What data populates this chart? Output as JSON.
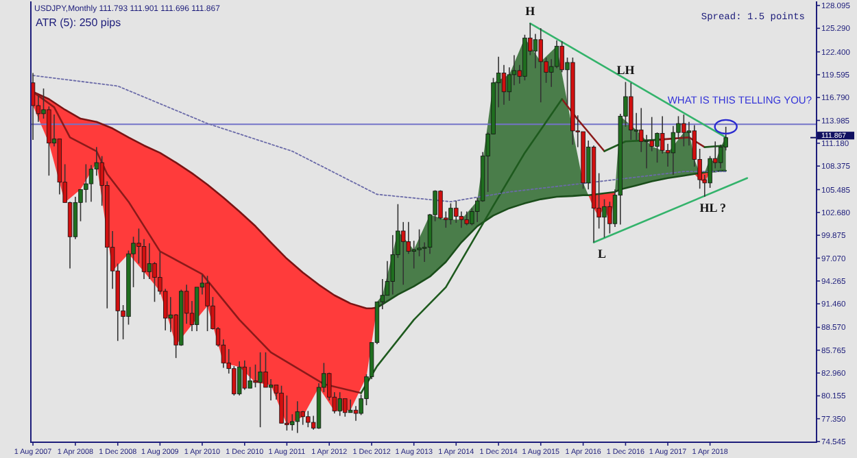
{
  "chart_data": {
    "type": "candlestick",
    "title": "USDJPY,Monthly  111.793 111.901 111.696 111.867",
    "subtitle": "ATR (5): 250 pips",
    "xlim": [
      "2007-07-16",
      "2019-12"
    ],
    "ylim": [
      74.545,
      128.6
    ],
    "xticks": [
      {
        "value": "2007-08",
        "label": "1 Aug 2007"
      },
      {
        "value": "2008-04",
        "label": "1 Apr 2008"
      },
      {
        "value": "2008-12",
        "label": "1 Dec 2008"
      },
      {
        "value": "2009-08",
        "label": "1 Aug 2009"
      },
      {
        "value": "2010-04",
        "label": "1 Apr 2010"
      },
      {
        "value": "2010-12",
        "label": "1 Dec 2010"
      },
      {
        "value": "2011-08",
        "label": "1 Aug 2011"
      },
      {
        "value": "2012-04",
        "label": "1 Apr 2012"
      },
      {
        "value": "2012-12",
        "label": "1 Dec 2012"
      },
      {
        "value": "2013-08",
        "label": "1 Aug 2013"
      },
      {
        "value": "2014-04",
        "label": "1 Apr 2014"
      },
      {
        "value": "2014-12",
        "label": "1 Dec 2014"
      },
      {
        "value": "2015-08",
        "label": "1 Aug 2015"
      },
      {
        "value": "2016-04",
        "label": "1 Apr 2016"
      },
      {
        "value": "2016-12",
        "label": "1 Dec 2016"
      },
      {
        "value": "2017-08",
        "label": "1 Aug 2017"
      },
      {
        "value": "2018-04",
        "label": "1 Apr 2018"
      }
    ],
    "yticks": [
      {
        "value": 128.095,
        "label": "128.095"
      },
      {
        "value": 125.29,
        "label": "125.290"
      },
      {
        "value": 122.4,
        "label": "122.400"
      },
      {
        "value": 119.595,
        "label": "119.595"
      },
      {
        "value": 116.79,
        "label": "116.790"
      },
      {
        "value": 113.985,
        "label": "113.985"
      },
      {
        "value": 111.18,
        "label": "111.180"
      },
      {
        "value": 108.375,
        "label": "108.375"
      },
      {
        "value": 105.485,
        "label": "105.485"
      },
      {
        "value": 102.68,
        "label": "102.680"
      },
      {
        "value": 99.875,
        "label": "99.875"
      },
      {
        "value": 97.07,
        "label": "97.070"
      },
      {
        "value": 94.265,
        "label": "94.265"
      },
      {
        "value": 91.46,
        "label": "91.460"
      },
      {
        "value": 88.57,
        "label": "88.570"
      },
      {
        "value": 85.765,
        "label": "85.765"
      },
      {
        "value": 82.96,
        "label": "82.960"
      },
      {
        "value": 80.155,
        "label": "80.155"
      },
      {
        "value": 77.35,
        "label": "77.350"
      },
      {
        "value": 74.545,
        "label": "74.545"
      }
    ],
    "x": [
      "2007-08",
      "2007-09",
      "2007-10",
      "2007-11",
      "2007-12",
      "2008-01",
      "2008-02",
      "2008-03",
      "2008-04",
      "2008-05",
      "2008-06",
      "2008-07",
      "2008-08",
      "2008-09",
      "2008-10",
      "2008-11",
      "2008-12",
      "2009-01",
      "2009-02",
      "2009-03",
      "2009-04",
      "2009-05",
      "2009-06",
      "2009-07",
      "2009-08",
      "2009-09",
      "2009-10",
      "2009-11",
      "2009-12",
      "2010-01",
      "2010-02",
      "2010-03",
      "2010-04",
      "2010-05",
      "2010-06",
      "2010-07",
      "2010-08",
      "2010-09",
      "2010-10",
      "2010-11",
      "2010-12",
      "2011-01",
      "2011-02",
      "2011-03",
      "2011-04",
      "2011-05",
      "2011-06",
      "2011-07",
      "2011-08",
      "2011-09",
      "2011-10",
      "2011-11",
      "2011-12",
      "2012-01",
      "2012-02",
      "2012-03",
      "2012-04",
      "2012-05",
      "2012-06",
      "2012-07",
      "2012-08",
      "2012-09",
      "2012-10",
      "2012-11",
      "2012-12",
      "2013-01",
      "2013-02",
      "2013-03",
      "2013-04",
      "2013-05",
      "2013-06",
      "2013-07",
      "2013-08",
      "2013-09",
      "2013-10",
      "2013-11",
      "2013-12",
      "2014-01",
      "2014-02",
      "2014-03",
      "2014-04",
      "2014-05",
      "2014-06",
      "2014-07",
      "2014-08",
      "2014-09",
      "2014-10",
      "2014-11",
      "2014-12",
      "2015-01",
      "2015-02",
      "2015-03",
      "2015-04",
      "2015-05",
      "2015-06",
      "2015-07",
      "2015-08",
      "2015-09",
      "2015-10",
      "2015-11",
      "2015-12",
      "2016-01",
      "2016-02",
      "2016-03",
      "2016-04",
      "2016-05",
      "2016-06",
      "2016-07",
      "2016-08",
      "2016-09",
      "2016-10",
      "2016-11",
      "2016-12",
      "2017-01",
      "2017-02",
      "2017-03",
      "2017-04",
      "2017-05",
      "2017-06",
      "2017-07",
      "2017-08",
      "2017-09",
      "2017-10",
      "2017-11",
      "2017-12",
      "2018-01",
      "2018-02",
      "2018-03",
      "2018-04",
      "2018-05",
      "2018-06",
      "2018-07"
    ],
    "ohlc": [
      [
        118.6,
        119.8,
        111.6,
        115.8
      ],
      [
        115.8,
        117.0,
        113.8,
        114.8
      ],
      [
        114.8,
        117.9,
        114.2,
        115.3
      ],
      [
        115.3,
        115.7,
        107.2,
        111.2
      ],
      [
        111.2,
        114.7,
        110.8,
        111.7
      ],
      [
        111.7,
        111.7,
        104.9,
        106.4
      ],
      [
        106.4,
        108.6,
        103.9,
        103.9
      ],
      [
        103.9,
        104.0,
        95.8,
        99.7
      ],
      [
        99.7,
        104.6,
        99.4,
        103.9
      ],
      [
        103.9,
        105.5,
        101.6,
        105.5
      ],
      [
        105.5,
        108.6,
        103.9,
        106.2
      ],
      [
        106.2,
        108.5,
        104.0,
        108.0
      ],
      [
        108.0,
        110.7,
        107.2,
        108.8
      ],
      [
        108.8,
        109.6,
        103.5,
        106.0
      ],
      [
        106.0,
        106.5,
        90.9,
        98.4
      ],
      [
        98.4,
        100.4,
        93.3,
        95.5
      ],
      [
        95.5,
        96.4,
        86.9,
        90.6
      ],
      [
        90.6,
        91.3,
        87.1,
        89.9
      ],
      [
        89.9,
        98.0,
        88.9,
        97.6
      ],
      [
        97.6,
        99.7,
        93.5,
        98.9
      ],
      [
        98.9,
        100.7,
        96.4,
        98.5
      ],
      [
        98.5,
        99.4,
        94.5,
        95.4
      ],
      [
        95.4,
        98.9,
        94.5,
        96.4
      ],
      [
        96.4,
        96.6,
        91.7,
        94.7
      ],
      [
        94.7,
        97.8,
        92.6,
        93.0
      ],
      [
        93.0,
        93.3,
        88.2,
        89.7
      ],
      [
        89.7,
        92.3,
        88.0,
        90.1
      ],
      [
        90.1,
        90.2,
        84.8,
        86.4
      ],
      [
        86.4,
        93.2,
        86.3,
        93.0
      ],
      [
        93.0,
        93.8,
        89.0,
        90.3
      ],
      [
        90.3,
        91.8,
        88.1,
        88.9
      ],
      [
        88.9,
        93.5,
        88.1,
        93.5
      ],
      [
        93.5,
        95.0,
        92.6,
        94.0
      ],
      [
        94.0,
        94.9,
        88.1,
        91.2
      ],
      [
        91.2,
        92.3,
        88.3,
        88.4
      ],
      [
        88.4,
        88.6,
        86.2,
        86.4
      ],
      [
        86.4,
        87.1,
        83.6,
        84.2
      ],
      [
        84.2,
        85.9,
        82.9,
        83.5
      ],
      [
        83.5,
        83.8,
        80.2,
        80.4
      ],
      [
        80.4,
        84.4,
        80.2,
        83.7
      ],
      [
        83.7,
        84.5,
        80.9,
        81.1
      ],
      [
        81.1,
        83.7,
        81.1,
        82.0
      ],
      [
        82.0,
        84.0,
        81.2,
        81.8
      ],
      [
        81.8,
        85.5,
        76.3,
        83.1
      ],
      [
        83.1,
        85.5,
        81.2,
        81.2
      ],
      [
        81.2,
        82.2,
        79.6,
        81.5
      ],
      [
        81.5,
        81.5,
        79.7,
        80.5
      ],
      [
        80.5,
        81.4,
        76.8,
        76.8
      ],
      [
        76.8,
        80.2,
        75.9,
        76.6
      ],
      [
        76.6,
        77.9,
        75.9,
        77.0
      ],
      [
        77.0,
        79.5,
        75.6,
        78.2
      ],
      [
        78.2,
        78.3,
        76.6,
        77.6
      ],
      [
        77.6,
        78.3,
        76.3,
        76.9
      ],
      [
        76.9,
        77.7,
        76.0,
        76.2
      ],
      [
        76.2,
        81.7,
        76.1,
        81.2
      ],
      [
        81.2,
        84.2,
        80.6,
        82.9
      ],
      [
        82.9,
        83.0,
        79.6,
        80.0
      ],
      [
        80.0,
        80.6,
        78.0,
        78.3
      ],
      [
        78.3,
        80.6,
        77.7,
        79.8
      ],
      [
        79.8,
        79.8,
        77.6,
        78.1
      ],
      [
        78.1,
        79.7,
        78.1,
        78.4
      ],
      [
        78.4,
        78.9,
        77.1,
        78.0
      ],
      [
        78.0,
        80.3,
        77.8,
        79.8
      ],
      [
        79.8,
        82.8,
        79.0,
        82.5
      ],
      [
        82.5,
        86.7,
        82.2,
        86.7
      ],
      [
        86.7,
        91.7,
        86.5,
        91.7
      ],
      [
        91.7,
        94.5,
        90.8,
        92.5
      ],
      [
        92.5,
        96.7,
        92.5,
        94.2
      ],
      [
        94.2,
        99.9,
        92.6,
        97.5
      ],
      [
        97.5,
        103.7,
        97.1,
        100.4
      ],
      [
        100.4,
        101.5,
        93.8,
        99.1
      ],
      [
        99.1,
        101.5,
        97.6,
        97.9
      ],
      [
        97.9,
        99.2,
        95.8,
        98.1
      ],
      [
        98.1,
        100.6,
        97.3,
        98.3
      ],
      [
        98.3,
        99.0,
        96.6,
        98.4
      ],
      [
        98.4,
        102.5,
        97.6,
        102.4
      ],
      [
        102.4,
        105.4,
        101.6,
        105.3
      ],
      [
        105.3,
        105.4,
        101.8,
        102.0
      ],
      [
        102.0,
        102.8,
        100.8,
        101.8
      ],
      [
        101.8,
        103.8,
        101.2,
        103.2
      ],
      [
        103.2,
        104.1,
        101.4,
        102.2
      ],
      [
        102.2,
        102.8,
        100.8,
        101.8
      ],
      [
        101.8,
        102.8,
        101.1,
        101.3
      ],
      [
        101.3,
        103.2,
        101.1,
        102.8
      ],
      [
        102.8,
        104.5,
        101.5,
        104.1
      ],
      [
        104.1,
        110.1,
        104.0,
        109.6
      ],
      [
        109.6,
        112.5,
        105.2,
        112.3
      ],
      [
        112.3,
        119.2,
        112.3,
        118.6
      ],
      [
        118.6,
        121.8,
        115.6,
        119.8
      ],
      [
        119.8,
        120.8,
        115.9,
        117.5
      ],
      [
        117.5,
        120.5,
        116.4,
        119.6
      ],
      [
        119.6,
        122.0,
        118.3,
        120.1
      ],
      [
        120.1,
        120.8,
        118.5,
        119.4
      ],
      [
        119.4,
        124.5,
        118.9,
        124.1
      ],
      [
        124.1,
        125.9,
        122.0,
        122.5
      ],
      [
        122.5,
        124.6,
        120.4,
        123.9
      ],
      [
        123.9,
        125.3,
        116.2,
        121.2
      ],
      [
        121.2,
        121.7,
        118.6,
        119.9
      ],
      [
        119.9,
        121.5,
        118.1,
        120.6
      ],
      [
        120.6,
        123.8,
        120.4,
        123.1
      ],
      [
        123.1,
        123.7,
        119.9,
        120.2
      ],
      [
        120.2,
        121.7,
        115.9,
        121.1
      ],
      [
        121.1,
        121.7,
        111.0,
        112.7
      ],
      [
        112.7,
        114.6,
        110.7,
        112.6
      ],
      [
        112.6,
        112.6,
        105.6,
        106.3
      ],
      [
        106.3,
        111.5,
        105.5,
        110.7
      ],
      [
        110.7,
        110.9,
        99.0,
        103.2
      ],
      [
        103.2,
        107.5,
        100.7,
        102.1
      ],
      [
        102.1,
        104.3,
        99.6,
        103.4
      ],
      [
        103.4,
        104.0,
        100.1,
        101.3
      ],
      [
        101.3,
        105.5,
        100.9,
        104.8
      ],
      [
        104.8,
        114.8,
        101.2,
        114.5
      ],
      [
        114.5,
        118.7,
        113.2,
        116.9
      ],
      [
        116.9,
        118.6,
        111.6,
        112.8
      ],
      [
        112.8,
        114.9,
        111.6,
        112.8
      ],
      [
        112.8,
        115.5,
        110.1,
        111.4
      ],
      [
        111.4,
        112.2,
        108.1,
        111.5
      ],
      [
        111.5,
        114.4,
        110.2,
        110.8
      ],
      [
        110.8,
        112.5,
        108.8,
        112.4
      ],
      [
        112.4,
        114.5,
        109.9,
        110.3
      ],
      [
        110.3,
        111.1,
        108.3,
        110.0
      ],
      [
        110.0,
        113.3,
        107.3,
        112.5
      ],
      [
        112.5,
        114.5,
        111.7,
        113.6
      ],
      [
        113.6,
        114.7,
        110.8,
        112.5
      ],
      [
        112.5,
        113.8,
        110.9,
        112.7
      ],
      [
        112.7,
        113.4,
        108.3,
        109.2
      ],
      [
        109.2,
        110.5,
        105.6,
        106.7
      ],
      [
        106.7,
        107.3,
        104.6,
        106.3
      ],
      [
        106.3,
        109.6,
        105.7,
        109.3
      ],
      [
        109.3,
        111.4,
        108.1,
        108.8
      ],
      [
        108.8,
        111.0,
        108.1,
        110.7
      ],
      [
        110.7,
        113.2,
        110.3,
        111.867
      ]
    ],
    "series": [
      {
        "type": "line",
        "color": "#ff3b3b",
        "x": [
          "2007-08",
          "2007-11",
          "2008-02",
          "2008-05",
          "2008-08",
          "2008-11",
          "2009-02",
          "2009-05",
          "2009-08",
          "2009-11",
          "2010-02",
          "2010-05",
          "2010-08",
          "2010-11",
          "2011-02",
          "2011-05",
          "2011-08",
          "2011-11",
          "2012-02",
          "2012-05",
          "2012-08",
          "2012-11",
          "2012-12",
          "2013-01"
        ],
        "values": [
          null,
          null,
          null,
          null,
          null,
          null,
          null,
          null,
          null,
          null,
          null,
          null,
          null,
          null,
          null,
          null,
          null,
          null,
          null,
          null,
          null,
          null,
          null,
          null
        ],
        "upper": [
          117.5,
          116.6,
          115.3,
          114.2,
          113.8,
          113.0,
          111.9,
          110.9,
          110.0,
          108.8,
          107.5,
          106.1,
          104.5,
          102.8,
          101.0,
          99.0,
          97.0,
          95.3,
          93.8,
          92.5,
          91.5,
          90.9,
          90.9,
          91.0
        ],
        "lower": [
          115.8,
          111.2,
          103.9,
          105.5,
          108.8,
          95.5,
          97.6,
          95.4,
          93.0,
          86.4,
          88.9,
          91.2,
          84.2,
          83.7,
          81.8,
          81.5,
          76.6,
          77.6,
          81.2,
          78.3,
          78.4,
          82.5,
          86.7,
          91.0
        ]
      },
      {
        "type": "line",
        "color": "#4a7d4a",
        "x": [
          "2013-01",
          "2013-02",
          "2013-05",
          "2013-08",
          "2013-11",
          "2014-02",
          "2014-05",
          "2014-08",
          "2014-11",
          "2015-02",
          "2015-05",
          "2015-08",
          "2015-11",
          "2016-02",
          "2016-04",
          "2016-05",
          "2016-10",
          "2016-11",
          "2017-02",
          "2017-05",
          "2017-08",
          "2017-11",
          "2017-12",
          "2018-01",
          "2018-02",
          "2018-03",
          "2018-04",
          "2018-05",
          "2018-06",
          "2018-07"
        ],
        "values": [
          null,
          null,
          null,
          null,
          null,
          null,
          null,
          null,
          null,
          null,
          null,
          null,
          null,
          null,
          null,
          null,
          null,
          null,
          null,
          null,
          null,
          null,
          null,
          null,
          null,
          null,
          null,
          null,
          null,
          null
        ],
        "lower": [
          91.0,
          91.4,
          92.6,
          93.6,
          94.8,
          96.6,
          99.0,
          101.0,
          102.3,
          103.2,
          103.8,
          104.3,
          104.6,
          104.7,
          104.8,
          104.8,
          105.2,
          105.5,
          106.0,
          106.5,
          106.9,
          107.2,
          107.3,
          107.4,
          107.5,
          107.6,
          107.7,
          107.7,
          107.8,
          107.8
        ],
        "upper": [
          91.7,
          92.5,
          100.4,
          98.1,
          102.4,
          101.8,
          101.8,
          104.1,
          118.6,
          119.6,
          124.1,
          121.2,
          123.1,
          112.7,
          106.3,
          104.8,
          105.2,
          114.5,
          112.8,
          110.8,
          110.0,
          112.5,
          112.7,
          109.2,
          107.5,
          107.6,
          109.3,
          108.8,
          110.7,
          111.9
        ]
      },
      {
        "type": "line",
        "color": "#7a1414",
        "x": [
          "2007-08",
          "2007-11",
          "2008-02",
          "2008-05",
          "2008-08",
          "2008-11",
          "2009-02",
          "2009-05",
          "2009-08",
          "2009-11",
          "2010-02",
          "2010-05",
          "2010-08",
          "2010-11",
          "2011-02",
          "2011-05",
          "2011-08",
          "2011-11",
          "2012-02",
          "2012-05",
          "2012-08",
          "2012-11",
          "2012-12",
          "2013-01"
        ],
        "values": [
          117.5,
          116.6,
          115.3,
          114.2,
          113.8,
          113.0,
          111.9,
          110.9,
          110.0,
          108.8,
          107.5,
          106.1,
          104.5,
          102.8,
          101.0,
          99.0,
          97.0,
          95.3,
          93.8,
          92.5,
          91.5,
          90.9,
          90.9,
          91.0
        ]
      },
      {
        "type": "line",
        "color": "#1a4d1a",
        "x": [
          "2013-01",
          "2013-02",
          "2013-05",
          "2013-08",
          "2013-11",
          "2014-02",
          "2014-05",
          "2014-08",
          "2014-11",
          "2015-02",
          "2015-05",
          "2015-08",
          "2015-11",
          "2016-02",
          "2016-04",
          "2016-05",
          "2016-10",
          "2016-11",
          "2017-02",
          "2017-05",
          "2017-08",
          "2017-11",
          "2017-12",
          "2018-01",
          "2018-02",
          "2018-03",
          "2018-04",
          "2018-05",
          "2018-06",
          "2018-07"
        ],
        "values": [
          91.0,
          91.4,
          92.6,
          93.6,
          94.8,
          96.6,
          99.0,
          101.0,
          102.3,
          103.2,
          103.8,
          104.3,
          104.6,
          104.7,
          104.8,
          104.8,
          105.2,
          105.5,
          106.0,
          106.5,
          106.9,
          107.2,
          107.3,
          107.4,
          107.5,
          107.6,
          107.7,
          107.7,
          107.8,
          107.8
        ]
      },
      {
        "type": "line",
        "color": "#8b1a1a",
        "x": [
          "2007-08",
          "2007-12",
          "2008-03",
          "2008-08",
          "2008-10",
          "2009-02",
          "2009-08",
          "2010-04",
          "2010-11",
          "2011-05",
          "2012-03",
          "2012-10",
          "2013-01",
          "2015-12",
          "2016-03",
          "2016-08",
          "2016-12",
          "2017-06",
          "2017-12",
          "2018-03"
        ],
        "values": [
          117.5,
          115.6,
          111.9,
          110.2,
          107.4,
          104.0,
          97.9,
          95.1,
          89.5,
          85.5,
          81.6,
          80.5,
          null,
          116.6,
          114.1,
          110.2,
          null,
          111.6,
          111.9,
          110.7
        ]
      },
      {
        "type": "line",
        "color": "#1e5a1e",
        "x": [
          "2012-10",
          "2013-01",
          "2013-08",
          "2014-02",
          "2014-07",
          "2014-11",
          "2015-05",
          "2015-12",
          "2016-03",
          "2016-08",
          "2016-12",
          "2017-06",
          "2017-09",
          "2018-03",
          "2018-07"
        ],
        "values": [
          80.5,
          83.8,
          89.5,
          93.5,
          99.0,
          103.5,
          110.0,
          116.6,
          null,
          110.2,
          111.4,
          111.6,
          null,
          110.7,
          110.9
        ]
      },
      {
        "type": "line",
        "color": "#6a6aa8",
        "line_style": "dotted",
        "x": [
          "2007-08",
          "2008-12",
          "2010-05",
          "2011-09",
          "2013-01",
          "2014-03",
          "2015-02",
          "2016-06",
          "2017-11",
          "2018-07"
        ],
        "values": [
          119.5,
          118.2,
          113.6,
          110.2,
          104.9,
          104.0,
          105.2,
          106.4,
          107.7,
          107.7
        ]
      },
      {
        "type": "line",
        "color": "#33b36b",
        "x": [
          "2015-06",
          "2018-07"
        ],
        "values": [
          125.9,
          111.9
        ]
      },
      {
        "type": "line",
        "color": "#33b36b",
        "x": [
          "2016-06",
          "2018-11"
        ],
        "values": [
          99.0,
          106.9
        ]
      },
      {
        "type": "line",
        "color": "#ff3b3b",
        "x": [
          "2016-05",
          "2016-06",
          "2016-07",
          "2016-08",
          "2016-09",
          "2016-10"
        ],
        "values": [
          null,
          null,
          null,
          null,
          null,
          null
        ],
        "upper": [
          104.8,
          104.9,
          104.9,
          105.0,
          105.1,
          105.2
        ],
        "lower": [
          104.8,
          103.2,
          102.1,
          103.4,
          101.3,
          104.8
        ]
      },
      {
        "type": "line",
        "color": "#ff3b3b",
        "x": [
          "2018-01",
          "2018-02",
          "2018-03",
          "2018-04"
        ],
        "values": [
          null,
          null,
          null,
          null
        ],
        "upper": [
          107.4,
          107.5,
          107.6,
          107.7
        ],
        "lower": [
          107.4,
          106.7,
          106.3,
          107.7
        ]
      }
    ],
    "ref_lines": [
      {
        "axis": "y",
        "value": 113.5,
        "color": "#7373c8"
      }
    ],
    "annotations": [
      "Spread: 1.5 points",
      "WHAT IS THIS TELLING YOU?",
      {
        "text": "H",
        "x": "2015-06",
        "y": 125.9
      },
      {
        "text": "LH",
        "x": "2016-12",
        "y": 118.7
      },
      {
        "text": "L",
        "x": "2016-06",
        "y": 99.0
      },
      {
        "text": "HL ?",
        "x": "2018-03",
        "y": 104.6
      },
      "111.867"
    ]
  }
}
